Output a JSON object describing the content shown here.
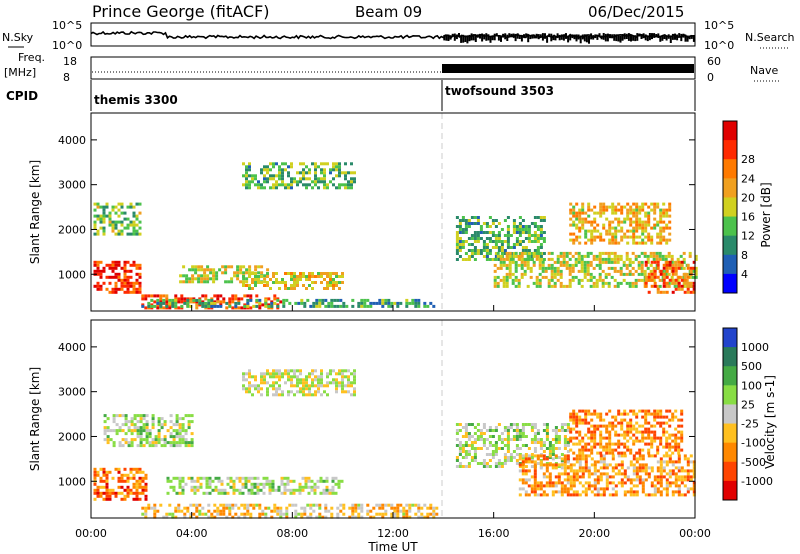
{
  "header": {
    "station": "Prince George (fitACF)",
    "beam": "Beam 09",
    "date": "06/Dec/2015"
  },
  "noise_panel": {
    "left_label": "N.Sky",
    "right_label": "N.Search",
    "left_ticks": [
      "10^5",
      "10^0"
    ],
    "right_ticks": [
      "10^5",
      "10^0"
    ]
  },
  "freq_panel": {
    "left_label_1": "Freq.",
    "left_label_2": "[MHz]",
    "right_label": "Nave",
    "left_ticks": [
      "18",
      "8"
    ],
    "right_ticks": [
      "60",
      "0"
    ]
  },
  "cpid_panel": {
    "label": "CPID",
    "segments": [
      {
        "name": "themis 3300",
        "start_hour": 0
      },
      {
        "name": "twofsound 3503",
        "start_hour": 14
      }
    ]
  },
  "x_axis": {
    "title": "Time UT",
    "ticks": [
      "00:00",
      "04:00",
      "08:00",
      "12:00",
      "16:00",
      "20:00",
      "00:00"
    ],
    "range_hours": [
      0,
      24
    ]
  },
  "chart_data": [
    {
      "type": "heatmap",
      "name": "power",
      "ylabel": "Slant Range [km]",
      "ylim": [
        180,
        4600
      ],
      "yticks": [
        "1000",
        "2000",
        "3000",
        "4000"
      ],
      "colorbar_label": "Power [dB]",
      "colorbar_ticks": [
        "4",
        "8",
        "12",
        "16",
        "20",
        "24",
        "28"
      ],
      "colors": [
        "#0000ff",
        "#1f5fb4",
        "#2a8a6a",
        "#4cc24c",
        "#d0d020",
        "#f0a020",
        "#ff7a00",
        "#ff2a00",
        "#e00000"
      ],
      "regions": [
        {
          "t": [
            0.1,
            2.0
          ],
          "r": [
            600,
            1300
          ],
          "level": 0.9
        },
        {
          "t": [
            0.1,
            2.0
          ],
          "r": [
            1900,
            2600
          ],
          "level": 0.4
        },
        {
          "t": [
            2.0,
            7.5
          ],
          "r": [
            250,
            550
          ],
          "level": 0.85
        },
        {
          "t": [
            3.5,
            7.0
          ],
          "r": [
            800,
            1200
          ],
          "level": 0.5
        },
        {
          "t": [
            6.0,
            10.0
          ],
          "r": [
            700,
            1050
          ],
          "level": 0.55
        },
        {
          "t": [
            6.0,
            10.5
          ],
          "r": [
            2900,
            3500
          ],
          "level": 0.35
        },
        {
          "t": [
            2.0,
            13.8
          ],
          "r": [
            250,
            450
          ],
          "level": 0.3
        },
        {
          "t": [
            14.5,
            18.0
          ],
          "r": [
            1300,
            2300
          ],
          "level": 0.35
        },
        {
          "t": [
            16.0,
            24.0
          ],
          "r": [
            700,
            1500
          ],
          "level": 0.5
        },
        {
          "t": [
            19.0,
            23.0
          ],
          "r": [
            1700,
            2600
          ],
          "level": 0.6
        },
        {
          "t": [
            22.0,
            24.0
          ],
          "r": [
            600,
            1300
          ],
          "level": 0.8
        }
      ]
    },
    {
      "type": "heatmap",
      "name": "velocity",
      "ylabel": "Slant Range [km]",
      "ylim": [
        180,
        4600
      ],
      "yticks": [
        "1000",
        "2000",
        "3000",
        "4000"
      ],
      "colorbar_label": "Velocity [m s-1]",
      "colorbar_ticks": [
        "1000",
        "500",
        "100",
        "25",
        "-25",
        "-100",
        "-500",
        "-1000"
      ],
      "colors": [
        "#2244cc",
        "#2a7a5a",
        "#44aa44",
        "#88dd44",
        "#c8c8c8",
        "#ffc020",
        "#ff8800",
        "#ff4400",
        "#e00000"
      ],
      "regions": [
        {
          "t": [
            0.1,
            2.2
          ],
          "r": [
            600,
            1300
          ],
          "level": 0.8
        },
        {
          "t": [
            0.5,
            4.0
          ],
          "r": [
            1800,
            2500
          ],
          "level": 0.45
        },
        {
          "t": [
            3.0,
            10.0
          ],
          "r": [
            700,
            1100
          ],
          "level": 0.45
        },
        {
          "t": [
            2.0,
            13.8
          ],
          "r": [
            220,
            500
          ],
          "level": 0.6
        },
        {
          "t": [
            6.0,
            10.5
          ],
          "r": [
            2900,
            3500
          ],
          "level": 0.5
        },
        {
          "t": [
            14.5,
            19.0
          ],
          "r": [
            1300,
            2300
          ],
          "level": 0.45
        },
        {
          "t": [
            17.0,
            24.0
          ],
          "r": [
            700,
            1600
          ],
          "level": 0.7
        },
        {
          "t": [
            19.0,
            23.5
          ],
          "r": [
            1600,
            2600
          ],
          "level": 0.75
        }
      ]
    }
  ]
}
